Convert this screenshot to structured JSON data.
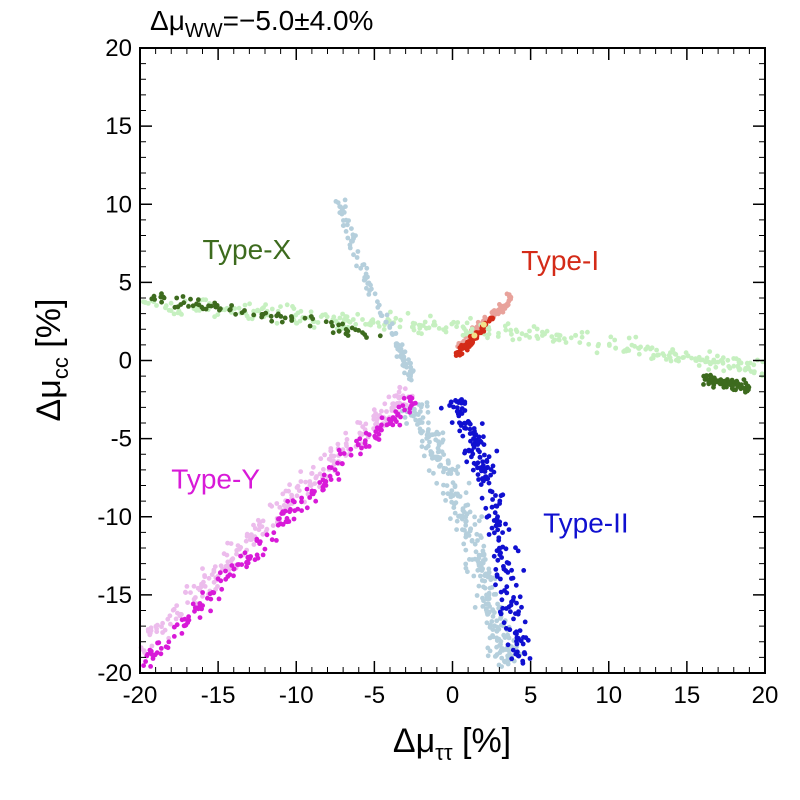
{
  "chart_data": {
    "type": "scatter",
    "title": {
      "prefix": "Δμ",
      "sub": "WW",
      "value": "=−5.0±4.0%"
    },
    "xlabel": {
      "prefix": "Δμ",
      "sub": "ττ",
      "suffix": " [%]"
    },
    "ylabel": {
      "prefix": "Δμ",
      "sub": "cc",
      "suffix": " [%]"
    },
    "xlim": [
      -20,
      20
    ],
    "ylim": [
      -20,
      20
    ],
    "x_ticks": [
      -20,
      -15,
      -10,
      -5,
      0,
      5,
      10,
      15,
      20
    ],
    "y_ticks": [
      -20,
      -15,
      -10,
      -5,
      0,
      5,
      10,
      15,
      20
    ],
    "x_tick_labels": [
      "-20",
      "-15",
      "-10",
      "-5",
      "0",
      "5",
      "10",
      "15",
      "20"
    ],
    "y_tick_labels": [
      "-20",
      "-15",
      "-10",
      "-5",
      "0",
      "5",
      "10",
      "15",
      "20"
    ],
    "grid": false,
    "series": [
      {
        "name": "Type-I",
        "color": "#d42b18",
        "light_color": "#e8a29b",
        "label_pos": [
          4.4,
          5.8
        ],
        "light_segments": [
          [
            [
              0.4,
              0.8
            ],
            [
              3.8,
              4.1
            ]
          ]
        ],
        "light_width": 0.5,
        "light_count": 90,
        "dark_segments": [
          [
            [
              0.2,
              0.3
            ],
            [
              2.6,
              2.7
            ]
          ]
        ],
        "dark_width": 0.35,
        "dark_count": 70,
        "highlights": [
          [
            2.0,
            2.3
          ],
          [
            1.4,
            1.6
          ]
        ],
        "highlight_color": "#f2e28a"
      },
      {
        "name": "Type-II",
        "color": "#1010d0",
        "light_color": "#b5cfdc",
        "label_pos": [
          5.8,
          -11.0
        ],
        "light_segments": [
          [
            [
              -2.4,
              -2.8
            ],
            [
              -0.8,
              -6.5
            ],
            [
              1.2,
              -11.0
            ],
            [
              2.5,
              -15.5
            ],
            [
              3.6,
              -19.5
            ]
          ]
        ],
        "light_width": 1.5,
        "light_count": 300,
        "dark_segments": [
          [
            [
              0.0,
              -2.5
            ],
            [
              1.6,
              -5.5
            ],
            [
              2.8,
              -9.5
            ],
            [
              3.6,
              -14.0
            ],
            [
              4.4,
              -19.5
            ]
          ]
        ],
        "dark_width": 1.3,
        "dark_count": 220
      },
      {
        "name": "Type-X",
        "color": "#3d6b1e",
        "light_color": "#c6f0c0",
        "label_pos": [
          -16.0,
          6.5
        ],
        "light_segments": [
          [
            [
              -19.8,
              3.6
            ],
            [
              -10.0,
              2.8
            ],
            [
              0.0,
              2.1
            ],
            [
              10.0,
              1.1
            ],
            [
              20.0,
              -0.6
            ]
          ]
        ],
        "light_width": 1.0,
        "light_count": 330,
        "dark_segments": [
          [
            [
              -19.5,
              4.0
            ],
            [
              -12.0,
              3.0
            ],
            [
              -4.5,
              1.5
            ]
          ],
          [
            [
              16.0,
              -1.2
            ],
            [
              19.0,
              -1.8
            ]
          ]
        ],
        "dark_width": 0.7,
        "dark_count": 150
      },
      {
        "name": "Type-Y",
        "color": "#d81ad8",
        "light_color": "#ecbcec",
        "label_pos": [
          -18.0,
          -8.2
        ],
        "light_segments": [
          [
            [
              -20.0,
              -18.5
            ],
            [
              -14.0,
              -12.5
            ],
            [
              -8.0,
              -6.5
            ],
            [
              -2.8,
              -2.0
            ]
          ]
        ],
        "light_width": 1.3,
        "light_count": 260,
        "dark_segments": [
          [
            [
              -19.8,
              -19.5
            ],
            [
              -13.0,
              -12.5
            ],
            [
              -7.0,
              -6.5
            ],
            [
              -2.5,
              -2.5
            ]
          ]
        ],
        "dark_width": 0.9,
        "dark_count": 200
      },
      {
        "name": "",
        "color": "#a8c6d6",
        "light_color": "#b5cfdc",
        "label_pos": null,
        "light_segments": [
          [
            [
              -7.3,
              10.3
            ],
            [
              -5.5,
              5.0
            ],
            [
              -3.5,
              1.0
            ],
            [
              -2.5,
              -1.2
            ]
          ]
        ],
        "light_width": 0.6,
        "light_count": 110,
        "dark_segments": [],
        "dark_width": 0,
        "dark_count": 0
      }
    ],
    "series_labels": [
      "Type-I",
      "Type-II",
      "Type-X",
      "Type-Y"
    ]
  }
}
